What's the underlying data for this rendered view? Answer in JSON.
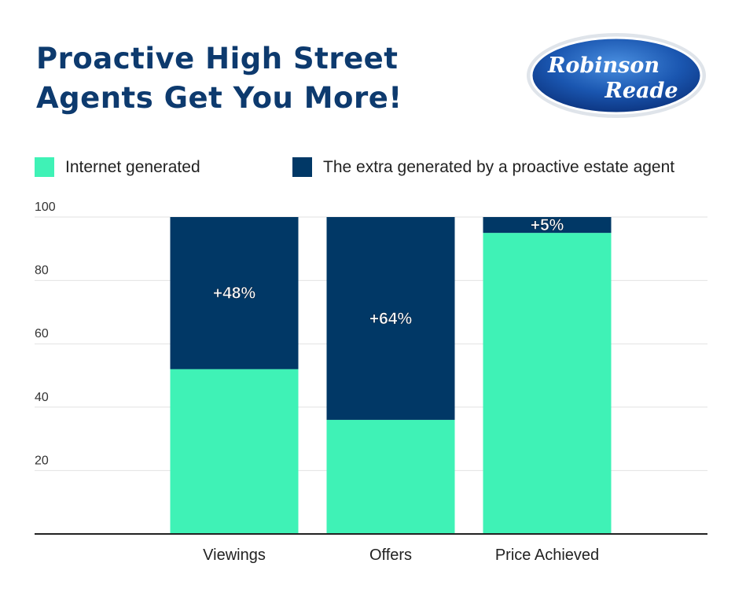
{
  "title": {
    "line1": "Proactive High Street",
    "line2": "Agents Get You More!"
  },
  "logo": {
    "line1": "Robinson",
    "line2": "Reade"
  },
  "colors": {
    "internet": "#3ff2b6",
    "extra": "#013866",
    "title": "#0d3a6e"
  },
  "chart_data": {
    "type": "bar",
    "stacked": true,
    "title": "Proactive High Street Agents Get You More!",
    "xlabel": "",
    "ylabel": "",
    "ylim": [
      0,
      100
    ],
    "yticks": [
      20,
      40,
      60,
      80,
      100
    ],
    "categories": [
      "Viewings",
      "Offers",
      "Price Achieved"
    ],
    "series": [
      {
        "name": "Internet generated",
        "values": [
          52,
          36,
          95
        ]
      },
      {
        "name": "The extra generated by a proactive estate agent",
        "values": [
          48,
          64,
          5
        ]
      }
    ],
    "data_labels": [
      "+48%",
      "+64%",
      "+5%"
    ],
    "legend_position": "top"
  }
}
